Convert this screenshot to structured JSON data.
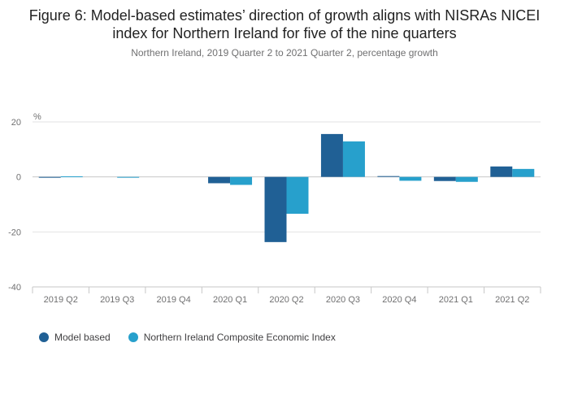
{
  "chart_data": {
    "type": "bar",
    "title": "Figure 6: Model-based estimates’ direction of growth aligns with NISRAs NICEI index for Northern Ireland for five of the nine quarters",
    "subtitle": "Northern Ireland, 2019 Quarter 2 to 2021 Quarter 2, percentage growth",
    "ylabel": "%",
    "ylim": [
      -40,
      20
    ],
    "yticks": [
      20,
      0,
      -20,
      -40
    ],
    "categories": [
      "2019 Q2",
      "2019 Q3",
      "2019 Q4",
      "2020 Q1",
      "2020 Q2",
      "2020 Q3",
      "2020 Q4",
      "2021 Q1",
      "2021 Q2"
    ],
    "series": [
      {
        "name": "Model based",
        "color": "#206095",
        "values": [
          -0.3,
          0,
          0,
          -2.3,
          -23.7,
          15.6,
          0.3,
          -1.5,
          3.8
        ]
      },
      {
        "name": "Northern Ireland Composite Economic Index",
        "color": "#27A0CC",
        "values": [
          0.2,
          -0.2,
          0,
          -2.9,
          -13.4,
          12.9,
          -1.4,
          -1.8,
          2.9
        ]
      }
    ],
    "grid": true,
    "legend_position": "bottom-left"
  }
}
